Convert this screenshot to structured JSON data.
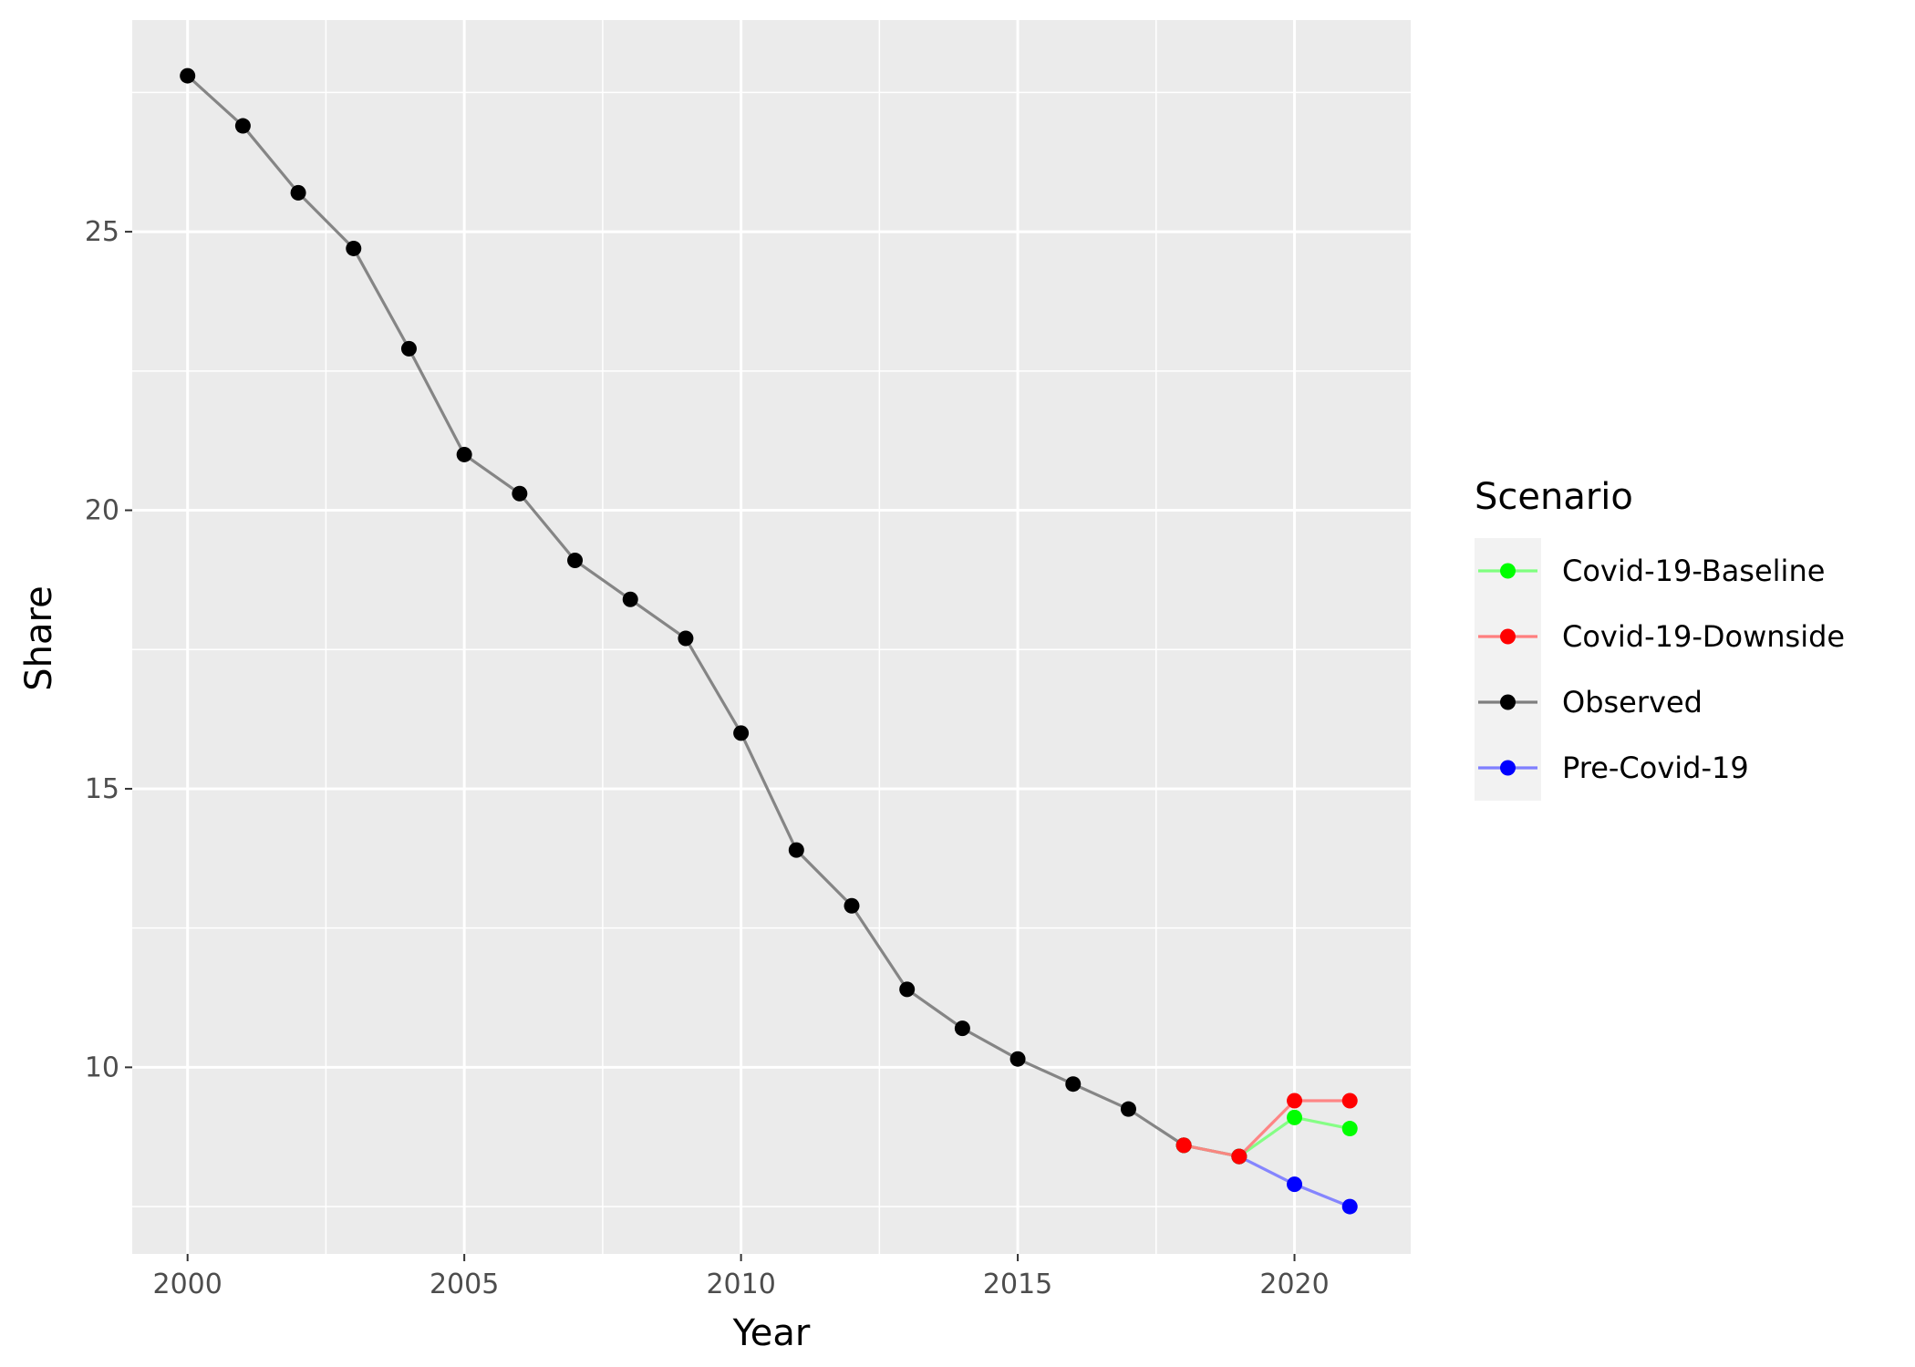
{
  "chart_data": {
    "type": "line",
    "xlabel": "Year",
    "ylabel": "Share",
    "xlim": [
      1999.0,
      2022.1
    ],
    "ylim": [
      6.65,
      28.8
    ],
    "x_ticks": [
      2000,
      2005,
      2010,
      2015,
      2020
    ],
    "x_tick_labels": [
      "2000",
      "2005",
      "2010",
      "2015",
      "2020"
    ],
    "y_ticks": [
      10,
      15,
      20,
      25
    ],
    "y_tick_labels": [
      "10",
      "15",
      "20",
      "25"
    ],
    "grid": true,
    "panel_background": "#EBEBEB",
    "legend": {
      "title": "Scenario",
      "position": "right"
    },
    "series": [
      {
        "name": "Observed",
        "color": "#000000",
        "line_color": "#7F7F7F",
        "x": [
          2000,
          2001,
          2002,
          2003,
          2004,
          2005,
          2006,
          2007,
          2008,
          2009,
          2010,
          2011,
          2012,
          2013,
          2014,
          2015,
          2016,
          2017,
          2018,
          2019
        ],
        "values": [
          27.8,
          26.9,
          25.7,
          24.7,
          22.9,
          21.0,
          20.3,
          19.1,
          18.4,
          17.7,
          16.0,
          13.9,
          12.9,
          11.4,
          10.7,
          10.15,
          9.7,
          9.25,
          8.6,
          8.4
        ]
      },
      {
        "name": "Pre-Covid-19",
        "color": "#0000FF",
        "line_color": "#7F7FFF",
        "x": [
          2018,
          2019,
          2020,
          2021
        ],
        "values": [
          8.6,
          8.4,
          7.9,
          7.5
        ]
      },
      {
        "name": "Covid-19-Baseline",
        "color": "#00FF00",
        "line_color": "#7FFF7F",
        "x": [
          2018,
          2019,
          2020,
          2021
        ],
        "values": [
          8.6,
          8.4,
          9.1,
          8.9
        ]
      },
      {
        "name": "Covid-19-Downside",
        "color": "#FF0000",
        "line_color": "#FF7F7F",
        "x": [
          2018,
          2019,
          2020,
          2021
        ],
        "values": [
          8.6,
          8.4,
          9.4,
          9.4
        ]
      }
    ],
    "legend_order": [
      "Covid-19-Baseline",
      "Covid-19-Downside",
      "Observed",
      "Pre-Covid-19"
    ]
  }
}
